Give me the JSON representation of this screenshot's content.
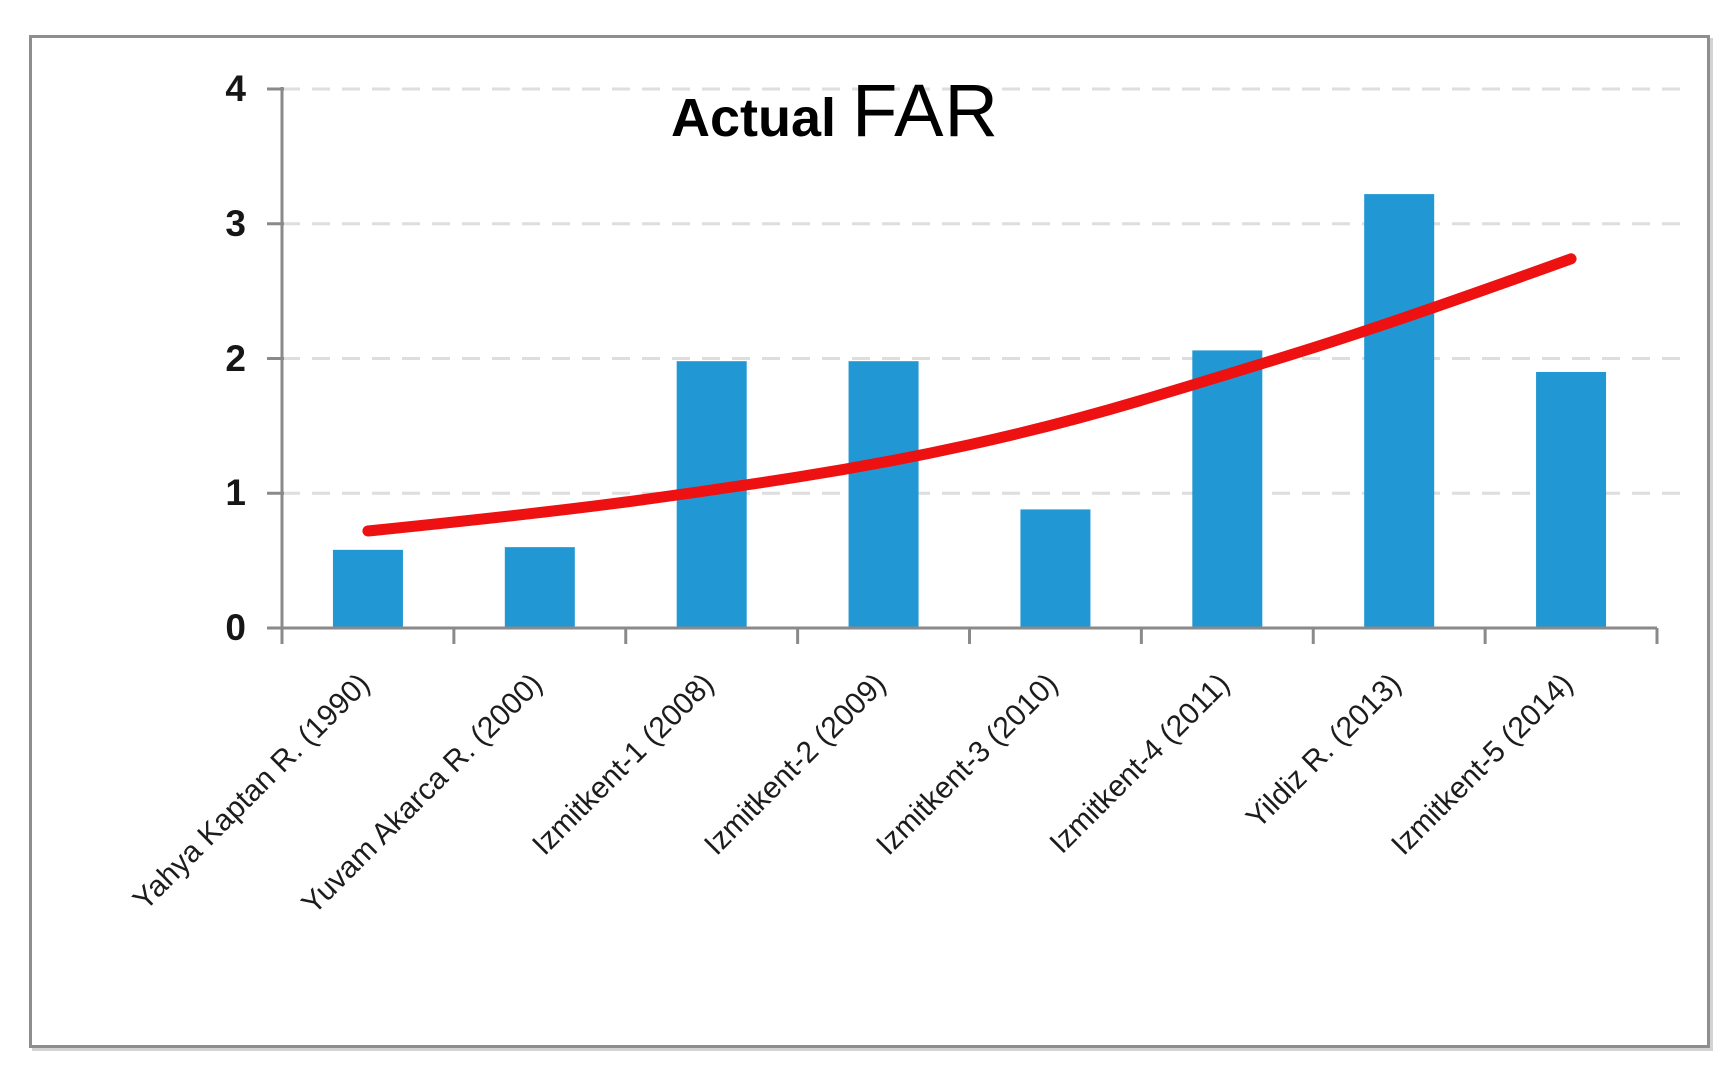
{
  "chart_data": {
    "type": "bar",
    "title_main": "Actual",
    "title_emphasis": "FAR",
    "title_full": "Actual FAR",
    "categories": [
      "Yahya Kaptan R. (1990)",
      "Yuvam Akarca R. (2000)",
      "Izmitkent-1 (2008)",
      "Izmitkent-2 (2009)",
      "Izmitkent-3 (2010)",
      "Izmitkent-4 (2011)",
      "Yildiz R. (2013)",
      "Izmitkent-5 (2014)"
    ],
    "series": [
      {
        "name": "Actual FAR",
        "type": "bar",
        "values": [
          0.58,
          0.6,
          1.98,
          1.98,
          0.88,
          2.06,
          3.22,
          1.9
        ]
      },
      {
        "name": "Exponential trend line",
        "type": "line",
        "values": [
          0.72,
          0.85,
          1.02,
          1.22,
          1.5,
          1.88,
          2.28,
          2.74
        ]
      }
    ],
    "xlabel": "",
    "ylabel": "",
    "ylim": [
      0,
      4
    ],
    "yticks": [
      0,
      1,
      2,
      3,
      4
    ],
    "grid": "horizontal-dashed",
    "legend": "none",
    "x_label_rotation_deg": 45,
    "colors": {
      "bar": "#2197d3",
      "trend": "#ee1111",
      "axis": "#8a8a8a",
      "grid": "#dedede",
      "text": "#161616",
      "frame": "#8e8e8e",
      "background": "#ffffff"
    }
  }
}
